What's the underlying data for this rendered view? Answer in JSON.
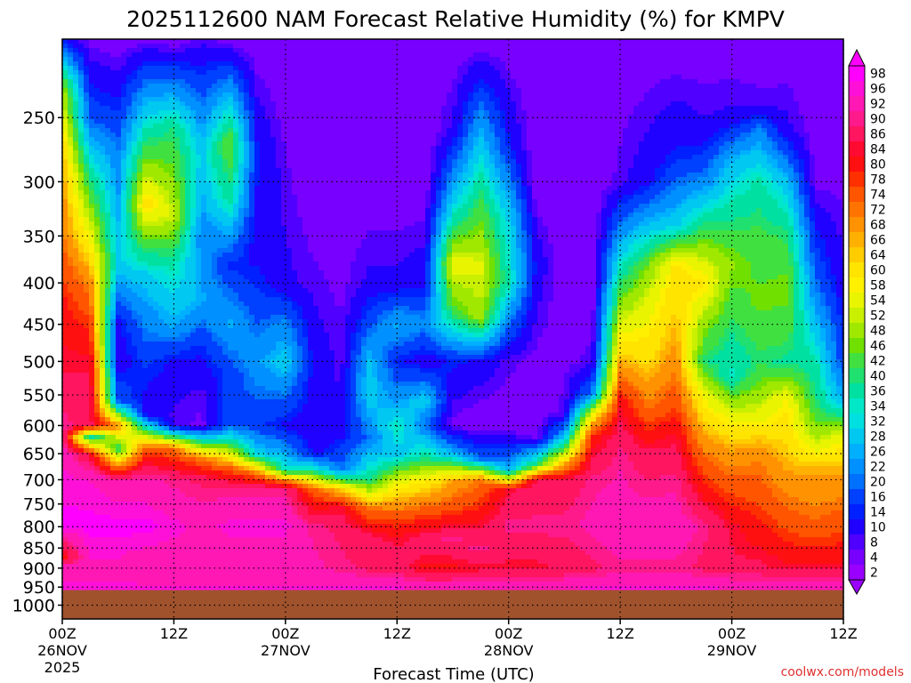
{
  "chart_data": {
    "type": "heatmap",
    "title": "2025112600 NAM Forecast Relative Humidity (%) for KMPV",
    "xlabel": "Forecast Time (UTC)",
    "ylabel": "",
    "x_ticks": [
      {
        "value": 0,
        "line1": "00Z",
        "line2": "26NOV",
        "line3": "2025"
      },
      {
        "value": 12,
        "line1": "12Z",
        "line2": "",
        "line3": ""
      },
      {
        "value": 24,
        "line1": "00Z",
        "line2": "27NOV",
        "line3": ""
      },
      {
        "value": 36,
        "line1": "12Z",
        "line2": "",
        "line3": ""
      },
      {
        "value": 48,
        "line1": "00Z",
        "line2": "28NOV",
        "line3": ""
      },
      {
        "value": 60,
        "line1": "12Z",
        "line2": "",
        "line3": ""
      },
      {
        "value": 72,
        "line1": "00Z",
        "line2": "29NOV",
        "line3": ""
      },
      {
        "value": 84,
        "line1": "12Z",
        "line2": "",
        "line3": ""
      }
    ],
    "xlim": [
      0,
      84
    ],
    "y_ticks": [
      250,
      300,
      350,
      400,
      450,
      500,
      550,
      600,
      650,
      700,
      750,
      800,
      850,
      900,
      950,
      1000
    ],
    "y_axis": "pressure (hPa), log scale, inverted",
    "ylim": [
      1040,
      200
    ],
    "grid": true,
    "colorbar_labels": [
      98,
      96,
      92,
      90,
      86,
      84,
      80,
      78,
      74,
      72,
      68,
      66,
      64,
      60,
      58,
      54,
      52,
      48,
      46,
      42,
      40,
      36,
      34,
      32,
      28,
      26,
      22,
      20,
      16,
      14,
      10,
      8,
      4,
      2
    ],
    "colorbar_colors": [
      "#ff00ff",
      "#ff10d8",
      "#ff18b4",
      "#ff1a8c",
      "#ff1560",
      "#ff0a30",
      "#ff1010",
      "#ff3000",
      "#ff5500",
      "#ff7400",
      "#ff9200",
      "#ffb000",
      "#ffcc00",
      "#ffe400",
      "#fff000",
      "#e8f400",
      "#c8f000",
      "#a0e800",
      "#70e000",
      "#40e040",
      "#20e070",
      "#00e0a0",
      "#00e8c8",
      "#00e0e0",
      "#00c8f0",
      "#00b0ff",
      "#0090ff",
      "#0070ff",
      "#0040ff",
      "#0020ff",
      "#2000ff",
      "#5000ff",
      "#7800ff",
      "#9a00ff"
    ],
    "surface_pressure_hpa": 958,
    "ground_color": "#a0522d",
    "rh_profiles": [
      {
        "hour": 0,
        "p": [
          200,
          230,
          280,
          350,
          420,
          500,
          560,
          620,
          700,
          800,
          870,
          900,
          960
        ],
        "rh": [
          12,
          50,
          66,
          72,
          80,
          84,
          88,
          92,
          96,
          98,
          80,
          94,
          96
        ]
      },
      {
        "hour": 3,
        "p": [
          200,
          250,
          300,
          400,
          480,
          550,
          600,
          620,
          650,
          700,
          800,
          900,
          960
        ],
        "rh": [
          6,
          18,
          40,
          70,
          82,
          88,
          86,
          34,
          84,
          95,
          98,
          94,
          96
        ]
      },
      {
        "hour": 6,
        "p": [
          200,
          280,
          380,
          450,
          500,
          560,
          600,
          640,
          700,
          800,
          900,
          960
        ],
        "rh": [
          4,
          22,
          30,
          12,
          10,
          20,
          70,
          40,
          92,
          98,
          94,
          96
        ]
      },
      {
        "hour": 9,
        "p": [
          200,
          260,
          320,
          390,
          430,
          500,
          580,
          640,
          700,
          800,
          900,
          960
        ],
        "rh": [
          6,
          36,
          62,
          30,
          24,
          16,
          10,
          76,
          92,
          98,
          92,
          96
        ]
      },
      {
        "hour": 12,
        "p": [
          200,
          260,
          330,
          380,
          450,
          500,
          600,
          640,
          700,
          800,
          900,
          960
        ],
        "rh": [
          4,
          40,
          52,
          36,
          26,
          12,
          8,
          72,
          90,
          96,
          92,
          96
        ]
      },
      {
        "hour": 15,
        "p": [
          200,
          280,
          350,
          420,
          480,
          550,
          600,
          660,
          700,
          800,
          900,
          960
        ],
        "rh": [
          8,
          30,
          22,
          26,
          14,
          8,
          6,
          72,
          88,
          94,
          92,
          96
        ]
      },
      {
        "hour": 18,
        "p": [
          200,
          270,
          320,
          380,
          450,
          520,
          600,
          680,
          720,
          800,
          900,
          960
        ],
        "rh": [
          5,
          46,
          36,
          14,
          26,
          16,
          18,
          76,
          90,
          96,
          92,
          96
        ]
      },
      {
        "hour": 21,
        "p": [
          200,
          280,
          350,
          420,
          500,
          600,
          650,
          690,
          720,
          800,
          900,
          960
        ],
        "rh": [
          4,
          14,
          10,
          16,
          24,
          16,
          30,
          74,
          90,
          96,
          92,
          96
        ]
      },
      {
        "hour": 24,
        "p": [
          200,
          300,
          400,
          450,
          500,
          600,
          680,
          700,
          720,
          800,
          900,
          960
        ],
        "rh": [
          3,
          8,
          10,
          22,
          30,
          12,
          34,
          70,
          90,
          96,
          92,
          96
        ]
      },
      {
        "hour": 27,
        "p": [
          200,
          300,
          400,
          500,
          600,
          650,
          680,
          720,
          800,
          900,
          960
        ],
        "rh": [
          4,
          4,
          8,
          12,
          10,
          12,
          36,
          74,
          90,
          92,
          96
        ]
      },
      {
        "hour": 30,
        "p": [
          200,
          300,
          400,
          500,
          600,
          680,
          720,
          760,
          800,
          900,
          960
        ],
        "rh": [
          4,
          4,
          6,
          8,
          10,
          20,
          64,
          84,
          88,
          90,
          96
        ]
      },
      {
        "hour": 33,
        "p": [
          200,
          300,
          400,
          450,
          500,
          550,
          620,
          700,
          760,
          820,
          900,
          960
        ],
        "rh": [
          4,
          4,
          10,
          18,
          28,
          30,
          20,
          38,
          72,
          86,
          88,
          96
        ]
      },
      {
        "hour": 36,
        "p": [
          200,
          300,
          400,
          450,
          500,
          560,
          600,
          650,
          700,
          780,
          850,
          900,
          960
        ],
        "rh": [
          4,
          4,
          10,
          26,
          14,
          24,
          36,
          28,
          54,
          76,
          86,
          88,
          96
        ]
      },
      {
        "hour": 39,
        "p": [
          200,
          300,
          400,
          450,
          500,
          560,
          600,
          650,
          700,
          760,
          830,
          900,
          960
        ],
        "rh": [
          4,
          4,
          12,
          22,
          10,
          30,
          20,
          36,
          58,
          74,
          88,
          82,
          96
        ]
      },
      {
        "hour": 42,
        "p": [
          200,
          260,
          320,
          380,
          430,
          500,
          600,
          650,
          700,
          760,
          830,
          900,
          960
        ],
        "rh": [
          4,
          10,
          30,
          56,
          44,
          14,
          6,
          26,
          66,
          76,
          90,
          82,
          96
        ]
      },
      {
        "hour": 45,
        "p": [
          200,
          260,
          320,
          380,
          440,
          500,
          600,
          660,
          700,
          780,
          850,
          900,
          960
        ],
        "rh": [
          4,
          26,
          42,
          54,
          50,
          12,
          4,
          20,
          72,
          82,
          90,
          84,
          96
        ]
      },
      {
        "hour": 48,
        "p": [
          200,
          270,
          330,
          400,
          450,
          500,
          600,
          680,
          720,
          800,
          900,
          960
        ],
        "rh": [
          4,
          14,
          30,
          36,
          20,
          8,
          4,
          26,
          84,
          90,
          84,
          96
        ]
      },
      {
        "hour": 51,
        "p": [
          200,
          300,
          380,
          450,
          550,
          620,
          670,
          700,
          800,
          900,
          960
        ],
        "rh": [
          4,
          4,
          12,
          8,
          4,
          6,
          40,
          86,
          90,
          84,
          96
        ]
      },
      {
        "hour": 54,
        "p": [
          200,
          300,
          400,
          500,
          580,
          620,
          660,
          700,
          800,
          900,
          960
        ],
        "rh": [
          4,
          4,
          4,
          6,
          8,
          28,
          60,
          86,
          90,
          86,
          96
        ]
      },
      {
        "hour": 57,
        "p": [
          200,
          300,
          400,
          500,
          550,
          580,
          620,
          700,
          800,
          900,
          960
        ],
        "rh": [
          4,
          4,
          4,
          8,
          22,
          56,
          80,
          90,
          92,
          88,
          96
        ]
      },
      {
        "hour": 60,
        "p": [
          200,
          300,
          350,
          400,
          450,
          500,
          560,
          650,
          800,
          900,
          960
        ],
        "rh": [
          4,
          8,
          24,
          40,
          54,
          66,
          82,
          90,
          94,
          90,
          96
        ]
      },
      {
        "hour": 63,
        "p": [
          200,
          300,
          340,
          380,
          420,
          500,
          580,
          650,
          800,
          900,
          960
        ],
        "rh": [
          4,
          12,
          28,
          46,
          54,
          62,
          74,
          86,
          94,
          90,
          96
        ]
      },
      {
        "hour": 66,
        "p": [
          200,
          280,
          340,
          380,
          440,
          500,
          560,
          620,
          700,
          800,
          900,
          960
        ],
        "rh": [
          4,
          14,
          30,
          60,
          64,
          70,
          76,
          84,
          90,
          94,
          90,
          96
        ]
      },
      {
        "hour": 69,
        "p": [
          200,
          260,
          300,
          350,
          400,
          450,
          500,
          550,
          650,
          800,
          900,
          960
        ],
        "rh": [
          4,
          10,
          22,
          44,
          60,
          48,
          40,
          56,
          72,
          90,
          88,
          96
        ]
      },
      {
        "hour": 72,
        "p": [
          200,
          250,
          280,
          320,
          380,
          450,
          520,
          580,
          650,
          800,
          900,
          960
        ],
        "rh": [
          4,
          10,
          26,
          36,
          48,
          40,
          34,
          54,
          68,
          84,
          86,
          96
        ]
      },
      {
        "hour": 75,
        "p": [
          200,
          240,
          260,
          300,
          350,
          420,
          500,
          580,
          650,
          800,
          900,
          960
        ],
        "rh": [
          4,
          8,
          22,
          36,
          42,
          46,
          40,
          54,
          70,
          80,
          86,
          96
        ]
      },
      {
        "hour": 78,
        "p": [
          200,
          260,
          300,
          350,
          400,
          450,
          500,
          560,
          650,
          800,
          900,
          960
        ],
        "rh": [
          4,
          10,
          28,
          40,
          46,
          44,
          38,
          58,
          64,
          76,
          84,
          96
        ]
      },
      {
        "hour": 81,
        "p": [
          200,
          300,
          350,
          400,
          450,
          500,
          560,
          620,
          680,
          800,
          900,
          960
        ],
        "rh": [
          4,
          6,
          14,
          20,
          28,
          36,
          40,
          50,
          66,
          74,
          84,
          96
        ]
      },
      {
        "hour": 84,
        "p": [
          200,
          300,
          400,
          450,
          500,
          560,
          620,
          680,
          800,
          900,
          960
        ],
        "rh": [
          4,
          6,
          10,
          14,
          16,
          26,
          56,
          66,
          76,
          84,
          96
        ]
      }
    ]
  },
  "watermark": "coolwx.com/models"
}
